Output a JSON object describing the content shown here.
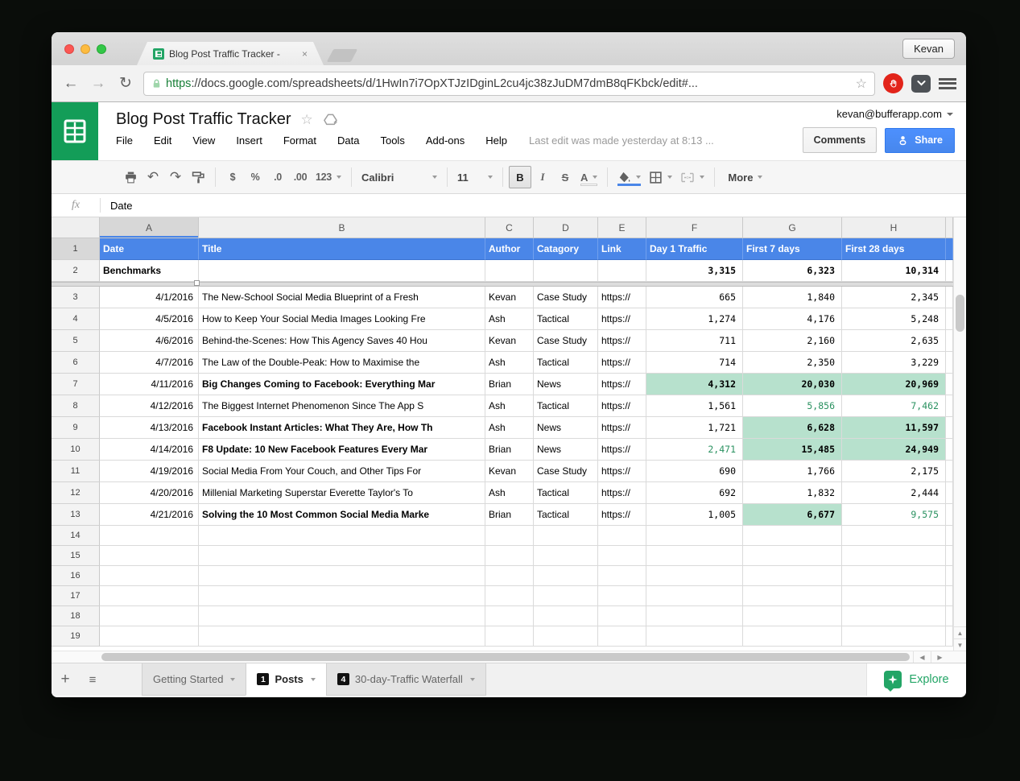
{
  "colors": {
    "accent_blue": "#4a86e8",
    "green_bg": "#b7e1cd",
    "green_text": "#2a9160",
    "sheets_green": "#139d58",
    "share_blue": "#4d90fe",
    "explore_green": "#23a566"
  },
  "browser": {
    "tab_title": "Blog Post Traffic Tracker -",
    "close_glyph": "×",
    "profile_name": "Kevan",
    "back_glyph": "←",
    "forward_glyph": "→",
    "reload_glyph": "↻",
    "url_scheme": "https",
    "url_rest": "://docs.google.com/spreadsheets/d/1HwIn7i7OpXTJzIDginL2cu4jc38zJuDM7dmB8qFKbck/edit#...",
    "bookmark_star": "☆"
  },
  "header": {
    "doc_title": "Blog Post Traffic Tracker",
    "star_glyph": "☆",
    "menu_items": [
      "File",
      "Edit",
      "View",
      "Insert",
      "Format",
      "Data",
      "Tools",
      "Add-ons",
      "Help"
    ],
    "last_edit": "Last edit was made yesterday at 8:13 ...",
    "comments_label": "Comments",
    "share_label": "Share",
    "account_email": "kevan@bufferapp.com"
  },
  "toolbar": {
    "undo_glyph": "↶",
    "redo_glyph": "↷",
    "currency": "$",
    "percent": "%",
    "dec_decrease": ".0",
    "dec_increase": ".00",
    "formats": "123",
    "font_name": "Calibri",
    "font_size": "11",
    "bold": "B",
    "italic": "I",
    "strike": "S",
    "text_color": "A",
    "more_label": "More"
  },
  "formula_bar": {
    "fx_label": "fx",
    "value": "Date"
  },
  "grid": {
    "column_letters": [
      "A",
      "B",
      "C",
      "D",
      "E",
      "F",
      "G",
      "H"
    ],
    "selected_column": "A",
    "header_cells": [
      "Date",
      "Title",
      "Author",
      "Catagory",
      "Link",
      "Day 1 Traffic",
      "First 7 days",
      "First 28 days"
    ],
    "benchmarks": {
      "row": "2",
      "label": "Benchmarks",
      "day1": "3,315",
      "first7": "6,323",
      "first28": "10,314"
    },
    "rows": [
      {
        "r": "3",
        "date": "4/1/2016",
        "title": "The New-School Social Media Blueprint of a Fresh",
        "bold": false,
        "author": "Kevan",
        "cat": "Case Study",
        "link": "https://",
        "v1": "665",
        "v7": "1,840",
        "v28": "2,345",
        "s1": "",
        "s7": "",
        "s28": ""
      },
      {
        "r": "4",
        "date": "4/5/2016",
        "title": "How to Keep Your Social Media Images Looking Fre",
        "bold": false,
        "author": "Ash",
        "cat": "Tactical",
        "link": "https://",
        "v1": "1,274",
        "v7": "4,176",
        "v28": "5,248",
        "s1": "",
        "s7": "",
        "s28": ""
      },
      {
        "r": "5",
        "date": "4/6/2016",
        "title": "Behind-the-Scenes: How This Agency Saves 40 Hou",
        "bold": false,
        "author": "Kevan",
        "cat": "Case Study",
        "link": "https://",
        "v1": "711",
        "v7": "2,160",
        "v28": "2,635",
        "s1": "",
        "s7": "",
        "s28": ""
      },
      {
        "r": "6",
        "date": "4/7/2016",
        "title": "The Law of the Double-Peak: How to Maximise the",
        "bold": false,
        "author": "Ash",
        "cat": "Tactical",
        "link": "https://",
        "v1": "714",
        "v7": "2,350",
        "v28": "3,229",
        "s1": "",
        "s7": "",
        "s28": ""
      },
      {
        "r": "7",
        "date": "4/11/2016",
        "title": "Big Changes Coming to Facebook: Everything Mar",
        "bold": true,
        "author": "Brian",
        "cat": "News",
        "link": "https://",
        "v1": "4,312",
        "v7": "20,030",
        "v28": "20,969",
        "s1": "gb",
        "s7": "gb",
        "s28": "gb"
      },
      {
        "r": "8",
        "date": "4/12/2016",
        "title": "The Biggest Internet Phenomenon Since The App S",
        "bold": false,
        "author": "Ash",
        "cat": "Tactical",
        "link": "https://",
        "v1": "1,561",
        "v7": "5,856",
        "v28": "7,462",
        "s1": "",
        "s7": "gt",
        "s28": "gt"
      },
      {
        "r": "9",
        "date": "4/13/2016",
        "title": "Facebook Instant Articles: What They Are, How Th",
        "bold": true,
        "author": "Ash",
        "cat": "News",
        "link": "https://",
        "v1": "1,721",
        "v7": "6,628",
        "v28": "11,597",
        "s1": "",
        "s7": "gb",
        "s28": "gb"
      },
      {
        "r": "10",
        "date": "4/14/2016",
        "title": "F8 Update: 10 New Facebook Features Every Mar",
        "bold": true,
        "author": "Brian",
        "cat": "News",
        "link": "https://",
        "v1": "2,471",
        "v7": "15,485",
        "v28": "24,949",
        "s1": "gt",
        "s7": "gb",
        "s28": "gb"
      },
      {
        "r": "11",
        "date": "4/19/2016",
        "title": "Social Media From Your Couch, and Other Tips For",
        "bold": false,
        "author": "Kevan",
        "cat": "Case Study",
        "link": "https://",
        "v1": "690",
        "v7": "1,766",
        "v28": "2,175",
        "s1": "",
        "s7": "",
        "s28": ""
      },
      {
        "r": "12",
        "date": "4/20/2016",
        "title": "Millenial Marketing Superstar Everette Taylor's To",
        "bold": false,
        "author": "Ash",
        "cat": "Tactical",
        "link": "https://",
        "v1": "692",
        "v7": "1,832",
        "v28": "2,444",
        "s1": "",
        "s7": "",
        "s28": ""
      },
      {
        "r": "13",
        "date": "4/21/2016",
        "title": "Solving the 10 Most Common Social Media Marke",
        "bold": true,
        "author": "Brian",
        "cat": "Tactical",
        "link": "https://",
        "v1": "1,005",
        "v7": "6,677",
        "v28": "9,575",
        "s1": "",
        "s7": "gb",
        "s28": "gt"
      }
    ],
    "empty_row_numbers": [
      "14",
      "15",
      "16",
      "17",
      "18",
      "19"
    ]
  },
  "sheet_tabs": {
    "add_glyph": "+",
    "all_sheets_glyph": "≡",
    "tabs": [
      {
        "label": "Getting Started",
        "badge": "",
        "active": false
      },
      {
        "label": "Posts",
        "badge": "1",
        "active": true
      },
      {
        "label": "30-day-Traffic Waterfall",
        "badge": "4",
        "active": false
      }
    ],
    "explore_label": "Explore"
  },
  "scroll": {
    "up_glyph": "▲",
    "down_glyph": "▼",
    "left_glyph": "◀",
    "right_glyph": "▶"
  }
}
